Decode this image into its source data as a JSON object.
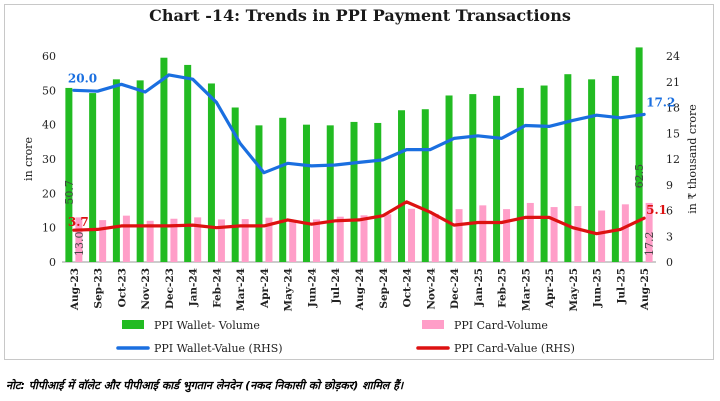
{
  "title": "Chart -14: Trends in PPI Payment Transactions",
  "note": "नोट: पीपीआई में वॉलेट और पीपीआई कार्ड भुगतान लेनदेन (नकद निकासी को छोड़कर) शामिल हैं।",
  "chart_data": {
    "type": "bar",
    "title": "Chart -14: Trends in PPI Payment Transactions",
    "ylabel": "in crore",
    "y2label": "in ₹ thousand crore",
    "ylim": [
      0,
      60
    ],
    "y2lim": [
      0,
      24
    ],
    "yticks": [
      0,
      10,
      20,
      30,
      40,
      50,
      60
    ],
    "y2ticks": [
      0,
      3,
      6,
      9,
      12,
      15,
      18,
      21,
      24
    ],
    "grid": false,
    "legend_position": "bottom",
    "categories": [
      "Aug-23",
      "Sep-23",
      "Oct-23",
      "Nov-23",
      "Dec-23",
      "Jan-24",
      "Feb-24",
      "Mar-24",
      "Apr-24",
      "May-24",
      "Jun-24",
      "Jul-24",
      "Aug-24",
      "Sep-24",
      "Oct-24",
      "Nov-24",
      "Dec-24",
      "Jan-25",
      "Feb-25",
      "Mar-25",
      "Apr-25",
      "May-25",
      "Jun-25",
      "Jul-25",
      "Aug-25"
    ],
    "series": [
      {
        "name": "PPI Wallet- Volume",
        "type": "bar",
        "axis": "left",
        "color": "#22bb22",
        "values": [
          50.7,
          49.2,
          53.2,
          52.9,
          59.5,
          57.4,
          52.0,
          45.0,
          39.8,
          42.0,
          40.0,
          39.8,
          40.8,
          40.5,
          44.2,
          44.5,
          48.5,
          48.9,
          48.4,
          50.7,
          51.4,
          54.7,
          53.2,
          54.2,
          62.5
        ]
      },
      {
        "name": "PPI Card-Volume",
        "type": "bar",
        "axis": "left",
        "color": "#ff9ec8",
        "values": [
          13.0,
          12.2,
          13.5,
          12.0,
          12.6,
          13.0,
          12.4,
          12.5,
          12.9,
          12.2,
          12.4,
          13.2,
          13.6,
          13.9,
          15.5,
          14.0,
          15.4,
          16.5,
          15.4,
          17.2,
          16.0,
          16.3,
          15.0,
          16.8,
          17.2
        ]
      },
      {
        "name": "PPI Wallet-Value (RHS)",
        "type": "line",
        "axis": "right",
        "color": "#1a6fe0",
        "values": [
          20.0,
          19.9,
          20.7,
          19.8,
          21.8,
          21.3,
          18.6,
          13.8,
          10.4,
          11.5,
          11.2,
          11.3,
          11.6,
          11.9,
          13.1,
          13.1,
          14.4,
          14.7,
          14.4,
          15.9,
          15.8,
          16.5,
          17.1,
          16.8,
          17.2
        ]
      },
      {
        "name": "PPI Card-Value (RHS)",
        "type": "line",
        "axis": "right",
        "color": "#dd1111",
        "values": [
          3.7,
          3.8,
          4.2,
          4.2,
          4.2,
          4.3,
          4.0,
          4.2,
          4.2,
          4.9,
          4.4,
          4.8,
          4.9,
          5.4,
          7.0,
          5.8,
          4.3,
          4.6,
          4.6,
          5.2,
          5.2,
          4.0,
          3.3,
          3.8,
          5.1
        ]
      }
    ],
    "data_labels": [
      {
        "text": "20.0",
        "series": "PPI Wallet-Value (RHS)",
        "index": 0
      },
      {
        "text": "17.2",
        "series": "PPI Wallet-Value (RHS)",
        "index": 24
      },
      {
        "text": "3.7",
        "series": "PPI Card-Value (RHS)",
        "index": 0
      },
      {
        "text": "5.1",
        "series": "PPI Card-Value (RHS)",
        "index": 24
      },
      {
        "text": "50.7",
        "series": "PPI Wallet- Volume",
        "index": 0
      },
      {
        "text": "62.5",
        "series": "PPI Wallet- Volume",
        "index": 24
      },
      {
        "text": "13.0",
        "series": "PPI Card-Volume",
        "index": 0
      },
      {
        "text": "17.2",
        "series": "PPI Card-Volume",
        "index": 24
      }
    ]
  }
}
